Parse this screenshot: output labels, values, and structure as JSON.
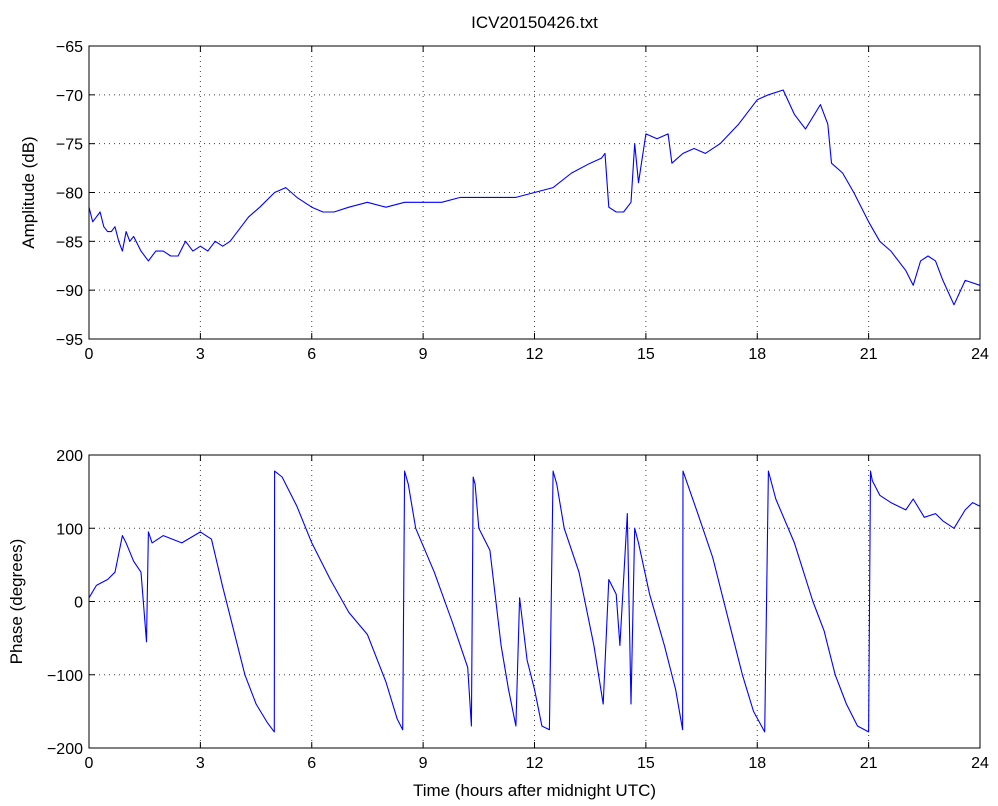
{
  "chart_data": [
    {
      "type": "line",
      "title": "ICV20150426.txt",
      "xlabel": "",
      "ylabel": "Amplitude (dB)",
      "xlim": [
        0,
        24
      ],
      "ylim": [
        -95,
        -65
      ],
      "grid": true,
      "xticks": [
        0,
        3,
        6,
        9,
        12,
        15,
        18,
        21,
        24
      ],
      "yticks": [
        -95,
        -90,
        -85,
        -80,
        -75,
        -70,
        -65
      ],
      "xtick_labels": [
        "0",
        "3",
        "6",
        "9",
        "12",
        "15",
        "18",
        "21",
        "24"
      ],
      "ytick_labels": [
        "−95",
        "−90",
        "−85",
        "−80",
        "−75",
        "−70",
        "−65"
      ],
      "color": "#0000ff",
      "series": [
        {
          "x": [
            0,
            0.1,
            0.2,
            0.3,
            0.4,
            0.5,
            0.6,
            0.7,
            0.8,
            0.9,
            1.0,
            1.1,
            1.2,
            1.4,
            1.6,
            1.8,
            2.0,
            2.2,
            2.4,
            2.6,
            2.8,
            3.0,
            3.2,
            3.4,
            3.6,
            3.8,
            4.0,
            4.3,
            4.6,
            5.0,
            5.3,
            5.6,
            6.0,
            6.3,
            6.6,
            7.0,
            7.5,
            8.0,
            8.5,
            9.0,
            9.5,
            10.0,
            10.5,
            11.0,
            11.5,
            12.0,
            12.5,
            13.0,
            13.5,
            13.8,
            13.9,
            14.0,
            14.2,
            14.4,
            14.6,
            14.7,
            14.8,
            15.0,
            15.3,
            15.6,
            15.7,
            16.0,
            16.3,
            16.6,
            17.0,
            17.5,
            18.0,
            18.3,
            18.7,
            19.0,
            19.3,
            19.7,
            19.9,
            20.0,
            20.3,
            20.6,
            21.0,
            21.3,
            21.6,
            22.0,
            22.2,
            22.4,
            22.6,
            22.8,
            23.0,
            23.3,
            23.6,
            24.0
          ],
          "y": [
            -81.5,
            -83,
            -82.5,
            -82,
            -83.5,
            -84,
            -84,
            -83.5,
            -85,
            -86,
            -84,
            -85,
            -84.5,
            -86,
            -87,
            -86,
            -86,
            -86.5,
            -86.5,
            -85,
            -86,
            -85.5,
            -86,
            -85,
            -85.5,
            -85,
            -84,
            -82.5,
            -81.5,
            -80,
            -79.5,
            -80.5,
            -81.5,
            -82,
            -82,
            -81.5,
            -81,
            -81.5,
            -81,
            -81,
            -81,
            -80.5,
            -80.5,
            -80.5,
            -80.5,
            -80,
            -79.5,
            -78,
            -77,
            -76.5,
            -76,
            -81.5,
            -82,
            -82,
            -81,
            -75,
            -79,
            -74,
            -74.5,
            -74,
            -77,
            -76,
            -75.5,
            -76,
            -75,
            -73,
            -70.5,
            -70,
            -69.5,
            -72,
            -73.5,
            -71,
            -73,
            -77,
            -78,
            -80,
            -83,
            -85,
            -86,
            -88,
            -89.5,
            -87,
            -86.5,
            -87,
            -89,
            -91.5,
            -89,
            -89.5
          ]
        }
      ]
    },
    {
      "type": "line",
      "title": "",
      "xlabel": "Time (hours after midnight UTC)",
      "ylabel": "Phase (degrees)",
      "xlim": [
        0,
        24
      ],
      "ylim": [
        -200,
        200
      ],
      "grid": true,
      "xticks": [
        0,
        3,
        6,
        9,
        12,
        15,
        18,
        21,
        24
      ],
      "yticks": [
        -200,
        -100,
        0,
        100,
        200
      ],
      "xtick_labels": [
        "0",
        "3",
        "6",
        "9",
        "12",
        "15",
        "18",
        "21",
        "24"
      ],
      "ytick_labels": [
        "−200",
        "−100",
        "0",
        "100",
        "200"
      ],
      "color": "#0000ff",
      "series": [
        {
          "x": [
            0,
            0.2,
            0.5,
            0.7,
            0.9,
            1.0,
            1.2,
            1.4,
            1.55,
            1.6,
            1.7,
            2.0,
            2.5,
            3.0,
            3.3,
            3.6,
            3.8,
            4.0,
            4.2,
            4.5,
            4.8,
            4.99,
            5.0,
            5.2,
            5.6,
            6.0,
            6.5,
            7.0,
            7.5,
            8.0,
            8.3,
            8.45,
            8.5,
            8.6,
            8.8,
            9.3,
            9.8,
            10.2,
            10.3,
            10.35,
            10.4,
            10.5,
            10.8,
            11.1,
            11.3,
            11.5,
            11.6,
            11.8,
            12.0,
            12.2,
            12.4,
            12.5,
            12.6,
            12.8,
            13.2,
            13.6,
            13.85,
            14.0,
            14.2,
            14.3,
            14.5,
            14.6,
            14.7,
            14.8,
            15.1,
            15.5,
            15.8,
            15.99,
            16.0,
            16.4,
            16.8,
            17.2,
            17.6,
            17.9,
            18.2,
            18.3,
            18.5,
            19.0,
            19.5,
            19.8,
            19.95,
            20.1,
            20.4,
            20.7,
            21.0,
            21.05,
            21.1,
            21.3,
            21.6,
            22.0,
            22.2,
            22.5,
            22.8,
            23.0,
            23.3,
            23.6,
            23.8,
            24.0
          ],
          "y": [
            5,
            22,
            30,
            40,
            90,
            80,
            55,
            40,
            -55,
            95,
            80,
            90,
            80,
            95,
            85,
            20,
            -20,
            -60,
            -100,
            -140,
            -165,
            -178,
            178,
            170,
            130,
            80,
            30,
            -15,
            -45,
            -110,
            -160,
            -175,
            178,
            160,
            100,
            40,
            -30,
            -90,
            -170,
            170,
            160,
            100,
            70,
            -60,
            -120,
            -170,
            5,
            -80,
            -120,
            -170,
            -175,
            178,
            160,
            100,
            40,
            -60,
            -140,
            30,
            10,
            -60,
            120,
            -140,
            100,
            80,
            10,
            -60,
            -120,
            -175,
            178,
            120,
            60,
            -20,
            -100,
            -150,
            -178,
            178,
            140,
            80,
            0,
            -40,
            -70,
            -100,
            -140,
            -170,
            -178,
            178,
            165,
            145,
            135,
            125,
            140,
            115,
            120,
            110,
            100,
            125,
            135,
            130
          ]
        }
      ]
    }
  ]
}
